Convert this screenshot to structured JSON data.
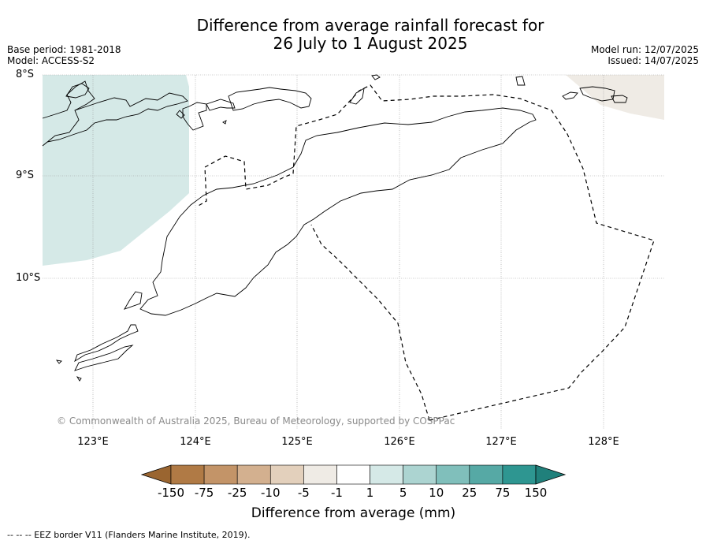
{
  "title": {
    "line1": "Difference from average rainfall forecast for",
    "line2": "26 July to 1 August 2025"
  },
  "meta": {
    "base_period": "Base period: 1981-2018",
    "model": "Model: ACCESS-S2",
    "model_run": "Model run: 12/07/2025",
    "issued": "Issued: 14/07/2025"
  },
  "map": {
    "latitude_labels": [
      "8°S",
      "9°S",
      "10°S"
    ],
    "longitude_labels": [
      "123°E",
      "124°E",
      "125°E",
      "126°E",
      "127°E",
      "128°E"
    ],
    "colors": {
      "wetter_area": "#d5e9e7",
      "drier_area": "#efebe5",
      "coastline": "#000000",
      "grid": "#999999"
    },
    "copyright": "© Commonwealth of Australia 2025, Bureau of Meteorology, supported by COSPPac"
  },
  "colorbar": {
    "ticks": [
      "-150",
      "-75",
      "-25",
      "-10",
      "-5",
      "-1",
      "1",
      "5",
      "10",
      "25",
      "75",
      "150"
    ],
    "colors": [
      "#9a6530",
      "#b07a45",
      "#c39468",
      "#d3b08f",
      "#e3d0bc",
      "#efebe5",
      "#ffffff",
      "#d5e9e7",
      "#acd4d1",
      "#80bfbb",
      "#56a9a5",
      "#2e9691",
      "#20807b"
    ],
    "label": "Difference from average (mm)"
  },
  "footer": "--  --  -- EEZ border V11 (Flanders Marine Institute, 2019)."
}
